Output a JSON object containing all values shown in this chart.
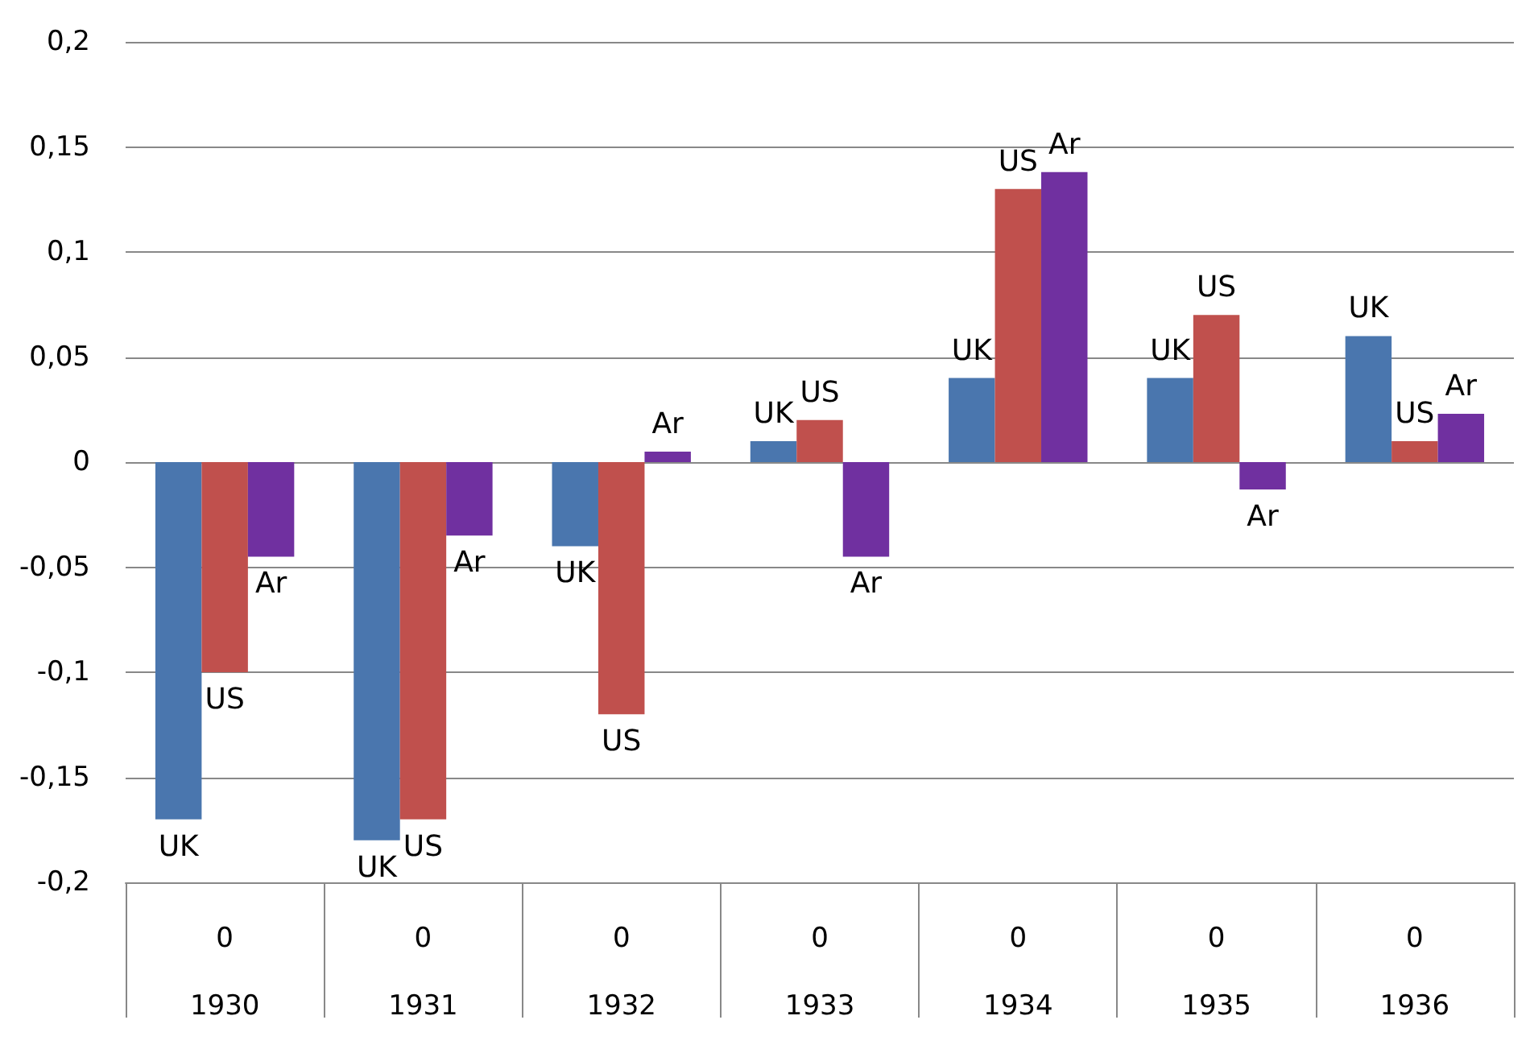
{
  "chart_data": {
    "type": "bar",
    "categories": [
      "0\n1930",
      "0\n1931",
      "0\n1932",
      "0\n1933",
      "0\n1934",
      "0\n1935",
      "0\n1936"
    ],
    "series": [
      {
        "name": "UK",
        "color": "#4a76ae",
        "values": [
          -0.17,
          -0.18,
          -0.04,
          0.01,
          0.04,
          0.04,
          0.06
        ]
      },
      {
        "name": "US",
        "color": "#c0504d",
        "values": [
          -0.1,
          -0.17,
          -0.12,
          0.02,
          0.13,
          0.07,
          0.01
        ]
      },
      {
        "name": "Ar",
        "color": "#7030a0",
        "values": [
          -0.045,
          -0.035,
          0.005,
          -0.045,
          0.138,
          -0.013,
          0.023
        ]
      }
    ],
    "ylim": [
      -0.2,
      0.2
    ],
    "yticks": [
      {
        "value": -0.2,
        "label": "-0,2"
      },
      {
        "value": -0.15,
        "label": "-0,15"
      },
      {
        "value": -0.1,
        "label": "-0,1"
      },
      {
        "value": -0.05,
        "label": "-0,05"
      },
      {
        "value": 0,
        "label": "0"
      },
      {
        "value": 0.05,
        "label": "0,05"
      },
      {
        "value": 0.1,
        "label": "0,1"
      },
      {
        "value": 0.15,
        "label": "0,15"
      },
      {
        "value": 0.2,
        "label": "0,2"
      }
    ],
    "grid": "y",
    "legend": false
  }
}
